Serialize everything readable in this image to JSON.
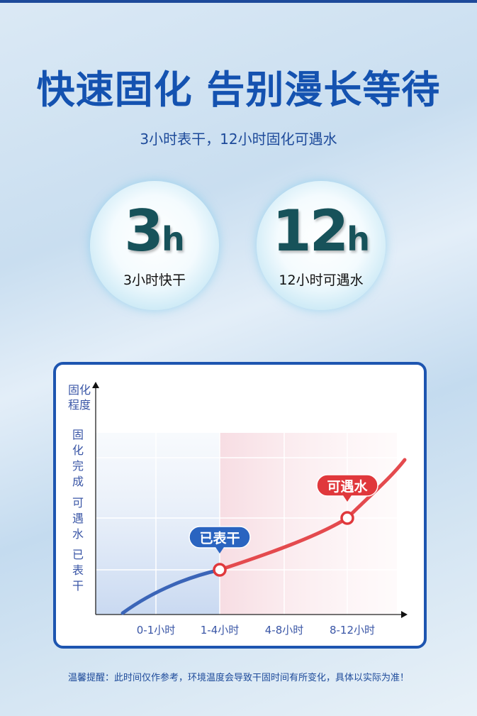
{
  "title": "快速固化 告别漫长等待",
  "subtitle": "3小时表干，12小时固化可遇水",
  "bubbles": [
    {
      "value": "3",
      "unit": "h",
      "caption": "3小时快干"
    },
    {
      "value": "12",
      "unit": "h",
      "caption": "12小时可遇水"
    }
  ],
  "chart_data": {
    "type": "line",
    "ylabel": "固化程度",
    "categories": [
      "0-1小时",
      "1-4小时",
      "4-8小时",
      "8-12小时"
    ],
    "y_levels": [
      "已表干",
      "可遇水",
      "固化完成"
    ],
    "y_level_labels": [
      "已\n表\n干",
      "可\n遇\n水",
      "固\n化\n完\n成"
    ],
    "points": [
      {
        "x": "1-4小时",
        "level": "已表干",
        "label": "已表干",
        "color": "#2a64c0"
      },
      {
        "x": "8-12小时",
        "level": "可遇水",
        "label": "可遇水",
        "color": "#e0383c"
      }
    ],
    "colors": {
      "early": "#3b65b8",
      "late": "#e44a4e"
    }
  },
  "note": "温馨提醒：此时间仅作参考，环境温度会导致干固时间有所变化，具体以实际为准！"
}
